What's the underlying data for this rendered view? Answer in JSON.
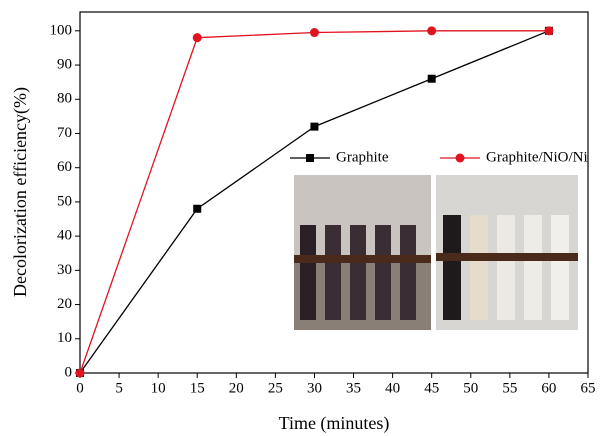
{
  "chart_data": {
    "type": "line",
    "x_label": "Time (minutes)",
    "y_label": "Decolorization efficiency(%)",
    "x": [
      0,
      15,
      30,
      45,
      60
    ],
    "series": [
      {
        "name": "Graphite",
        "color": "#000000",
        "marker": "square",
        "values": [
          0,
          48,
          72,
          86,
          100
        ]
      },
      {
        "name": "Graphite/NiO/Ni",
        "color": "#e0141e",
        "marker": "circle",
        "values": [
          0,
          98,
          99.5,
          100,
          100
        ]
      }
    ],
    "xlim": [
      0,
      65
    ],
    "xticks": [
      0,
      5,
      10,
      15,
      20,
      25,
      30,
      35,
      40,
      45,
      50,
      55,
      60,
      65
    ],
    "ylim": [
      0,
      105.5
    ],
    "yticks": [
      0,
      10,
      20,
      30,
      40,
      50,
      60,
      70,
      80,
      90,
      100
    ]
  }
}
